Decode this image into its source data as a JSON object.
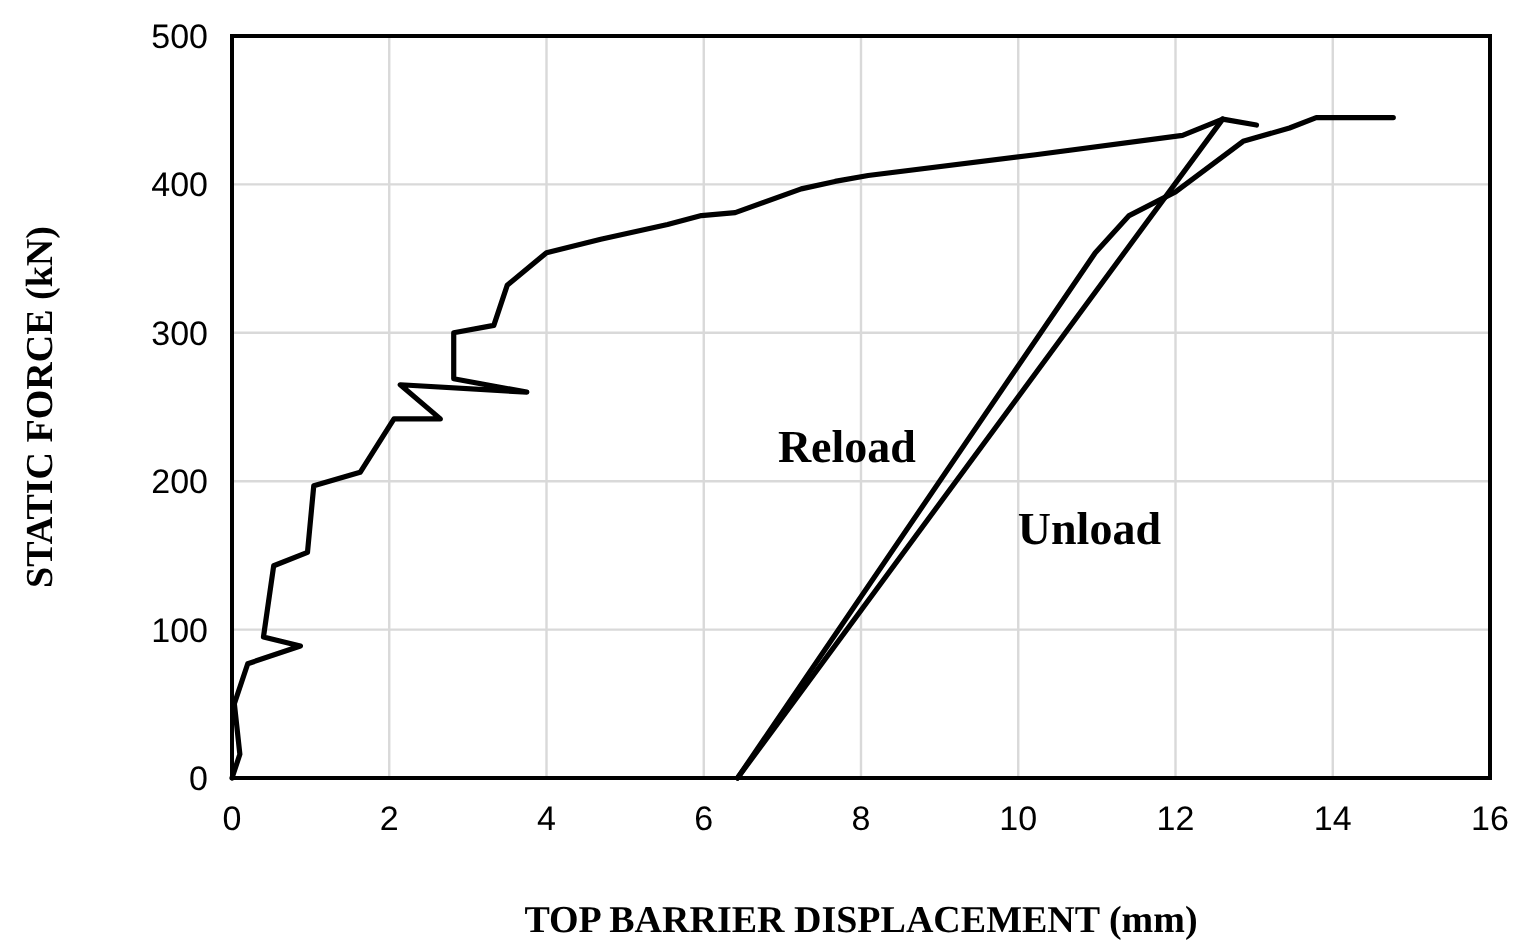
{
  "chart_data": {
    "type": "line",
    "xlabel": "TOP BARRIER DISPLACEMENT (mm)",
    "ylabel": "STATIC FORCE (kN)",
    "xlim": [
      0,
      16
    ],
    "xticks": [
      0,
      2,
      4,
      6,
      8,
      10,
      12,
      14,
      16
    ],
    "ylim": [
      0,
      500
    ],
    "yticks": [
      0,
      100,
      200,
      300,
      400,
      500
    ],
    "grid": true,
    "series": [
      {
        "color": "#000000",
        "x": [
          0,
          0.1,
          0.03,
          0.2,
          0.87,
          0.4,
          0.53,
          0.96,
          1.04,
          1.63,
          2.06,
          2.65,
          2.14,
          3.75,
          2.82,
          2.82,
          3.33,
          3.5,
          4.0,
          4.69,
          5.54,
          5.97,
          6.4,
          7.24,
          7.67,
          8.09,
          10.22,
          12.09,
          12.6,
          13.03,
          12.6
        ],
        "values": [
          0,
          16,
          50,
          77,
          89,
          95,
          143,
          152,
          197,
          206,
          242,
          242,
          265,
          260,
          269,
          300,
          305,
          332,
          354,
          363,
          373,
          379,
          381,
          397,
          402,
          406,
          420,
          433,
          444,
          440,
          444
        ]
      },
      {
        "name": "Unload",
        "color": "#000000",
        "x": [
          12.6,
          6.43
        ],
        "values": [
          444,
          0
        ]
      },
      {
        "name": "Reload",
        "color": "#000000",
        "x": [
          6.43,
          10.98,
          11.41,
          12.0,
          12.86,
          13.45,
          13.79,
          14.77
        ],
        "values": [
          0,
          354,
          379,
          395,
          429,
          438,
          445,
          445
        ]
      }
    ]
  }
}
